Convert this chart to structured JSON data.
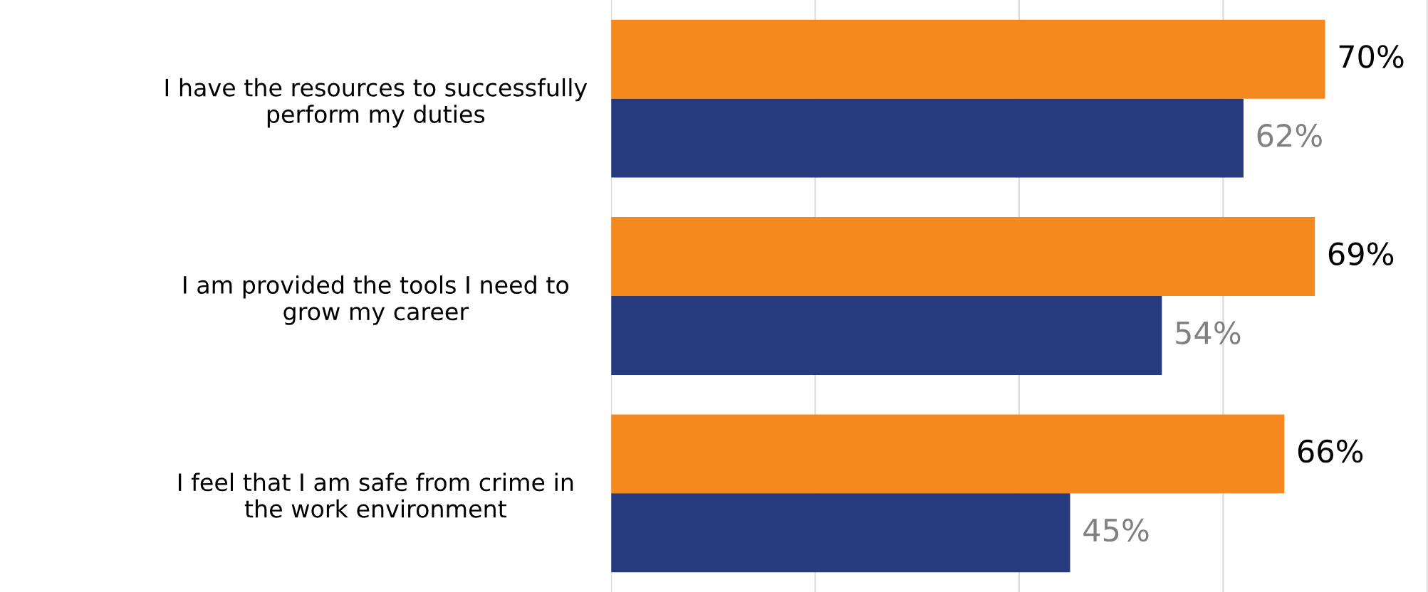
{
  "chart_data": {
    "type": "bar",
    "orientation": "horizontal",
    "categories": [
      "I have the resources to successfully perform my duties",
      "I am provided the tools I need to grow my career",
      "I feel that I am safe from crime in the work environment"
    ],
    "series": [
      {
        "color": "#f5891f",
        "values": [
          70,
          69,
          66
        ],
        "value_labels": [
          "70%",
          "69%",
          "66%"
        ]
      },
      {
        "color": "#283a7e",
        "values": [
          62,
          54,
          45
        ],
        "value_labels": [
          "62%",
          "54%",
          "45%"
        ]
      }
    ],
    "tick_labels": "y"
  }
}
